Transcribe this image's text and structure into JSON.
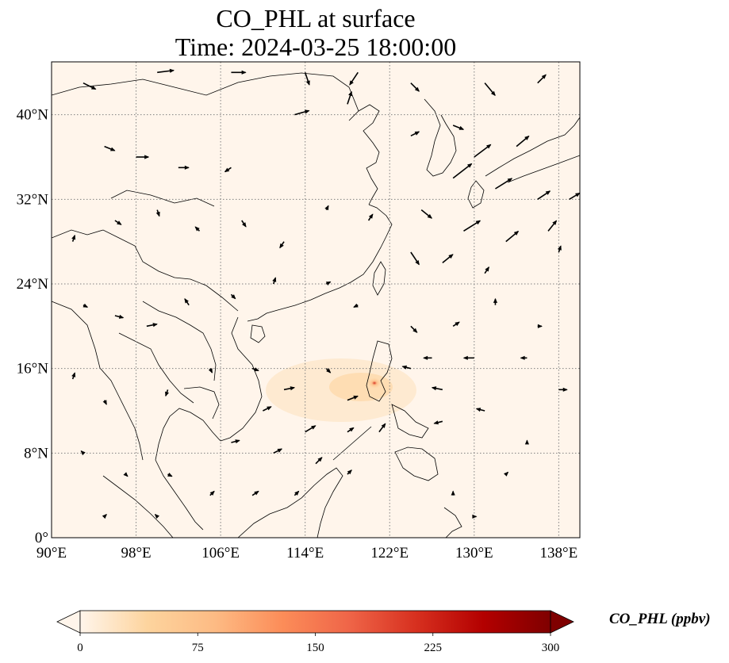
{
  "title": "CO_PHL at surface",
  "subtitle": "Time: 2024-03-25 18:00:00",
  "map": {
    "lon_range": [
      90,
      140
    ],
    "lat_range": [
      0,
      45
    ],
    "lon_ticks": [
      90,
      98,
      106,
      114,
      122,
      130,
      138
    ],
    "lon_tick_labels": [
      "90°E",
      "98°E",
      "106°E",
      "114°E",
      "122°E",
      "130°E",
      "138°E"
    ],
    "lat_ticks": [
      0,
      8,
      16,
      24,
      32,
      40
    ],
    "lat_tick_labels": [
      "0°",
      "8°N",
      "16°N",
      "24°N",
      "32°N",
      "40°N"
    ],
    "gridlines": true,
    "background_color": "#fff5eb",
    "plume_source": {
      "lon": 120.9,
      "lat": 14.6,
      "value_ppbv": 150
    }
  },
  "colorbar": {
    "label": "CO_PHL (ppbv)",
    "min": 0,
    "max": 300,
    "ticks": [
      0,
      75,
      150,
      225,
      300
    ],
    "tick_labels": [
      "0",
      "75",
      "150",
      "225",
      "300"
    ],
    "colormap": "OrRd",
    "colors": [
      "#fff5eb",
      "#fdd49e",
      "#fdbb84",
      "#fc8d59",
      "#ef6548",
      "#d7301f",
      "#b30000",
      "#7f0000"
    ],
    "extend": "both"
  },
  "wind_vectors": [
    {
      "lon": 93,
      "lat": 43,
      "u": 6,
      "v": -3
    },
    {
      "lon": 100,
      "lat": 44,
      "u": 8,
      "v": 1
    },
    {
      "lon": 107,
      "lat": 44,
      "u": 7,
      "v": 0
    },
    {
      "lon": 114,
      "lat": 44,
      "u": 2,
      "v": -6
    },
    {
      "lon": 119,
      "lat": 44,
      "u": -4,
      "v": -6
    },
    {
      "lon": 124,
      "lat": 43,
      "u": 4,
      "v": -4
    },
    {
      "lon": 131,
      "lat": 43,
      "u": 5,
      "v": -6
    },
    {
      "lon": 136,
      "lat": 43,
      "u": 4,
      "v": 4
    },
    {
      "lon": 95,
      "lat": 37,
      "u": 5,
      "v": -2
    },
    {
      "lon": 98,
      "lat": 36,
      "u": 6,
      "v": 0
    },
    {
      "lon": 102,
      "lat": 35,
      "u": 5,
      "v": 0
    },
    {
      "lon": 107,
      "lat": 35,
      "u": -3,
      "v": -2
    },
    {
      "lon": 113,
      "lat": 40,
      "u": 7,
      "v": 2
    },
    {
      "lon": 118,
      "lat": 41,
      "u": 2,
      "v": 6
    },
    {
      "lon": 124,
      "lat": 38,
      "u": 4,
      "v": 2
    },
    {
      "lon": 128,
      "lat": 39,
      "u": 5,
      "v": -2
    },
    {
      "lon": 130,
      "lat": 36,
      "u": 8,
      "v": 6
    },
    {
      "lon": 134,
      "lat": 37,
      "u": 6,
      "v": 5
    },
    {
      "lon": 128,
      "lat": 34,
      "u": 9,
      "v": 7
    },
    {
      "lon": 132,
      "lat": 33,
      "u": 8,
      "v": 5
    },
    {
      "lon": 136,
      "lat": 32,
      "u": 6,
      "v": 4
    },
    {
      "lon": 139,
      "lat": 32,
      "u": 5,
      "v": 3
    },
    {
      "lon": 125,
      "lat": 31,
      "u": 5,
      "v": -4
    },
    {
      "lon": 129,
      "lat": 29,
      "u": 8,
      "v": 5
    },
    {
      "lon": 133,
      "lat": 28,
      "u": 6,
      "v": 5
    },
    {
      "lon": 137,
      "lat": 29,
      "u": 4,
      "v": 5
    },
    {
      "lon": 124,
      "lat": 27,
      "u": 4,
      "v": -6
    },
    {
      "lon": 127,
      "lat": 26,
      "u": 5,
      "v": 4
    },
    {
      "lon": 131,
      "lat": 25,
      "u": 2,
      "v": 3
    },
    {
      "lon": 138,
      "lat": 27,
      "u": 1,
      "v": 3
    },
    {
      "lon": 92,
      "lat": 28,
      "u": 1,
      "v": 3
    },
    {
      "lon": 96,
      "lat": 30,
      "u": 3,
      "v": -2
    },
    {
      "lon": 100,
      "lat": 31,
      "u": 1,
      "v": -3
    },
    {
      "lon": 104,
      "lat": 29,
      "u": -2,
      "v": 2
    },
    {
      "lon": 108,
      "lat": 30,
      "u": 2,
      "v": -3
    },
    {
      "lon": 112,
      "lat": 28,
      "u": -2,
      "v": -3
    },
    {
      "lon": 116,
      "lat": 31,
      "u": 1,
      "v": 2
    },
    {
      "lon": 120,
      "lat": 30,
      "u": 2,
      "v": 3
    },
    {
      "lon": 93,
      "lat": 22,
      "u": 2,
      "v": -1
    },
    {
      "lon": 96,
      "lat": 21,
      "u": 4,
      "v": -1
    },
    {
      "lon": 99,
      "lat": 20,
      "u": 5,
      "v": 1
    },
    {
      "lon": 103,
      "lat": 22,
      "u": -2,
      "v": 3
    },
    {
      "lon": 107,
      "lat": 23,
      "u": 2,
      "v": -2
    },
    {
      "lon": 111,
      "lat": 24,
      "u": 1,
      "v": 3
    },
    {
      "lon": 116,
      "lat": 24,
      "u": 2,
      "v": 1
    },
    {
      "lon": 119,
      "lat": 22,
      "u": -2,
      "v": -1
    },
    {
      "lon": 124,
      "lat": 20,
      "u": 3,
      "v": -3
    },
    {
      "lon": 128,
      "lat": 20,
      "u": 3,
      "v": 2
    },
    {
      "lon": 132,
      "lat": 22,
      "u": 0,
      "v": 3
    },
    {
      "lon": 136,
      "lat": 20,
      "u": 2,
      "v": 0
    },
    {
      "lon": 126,
      "lat": 17,
      "u": -4,
      "v": 0
    },
    {
      "lon": 130,
      "lat": 17,
      "u": -5,
      "v": 0
    },
    {
      "lon": 135,
      "lat": 17,
      "u": -3,
      "v": 0
    },
    {
      "lon": 138,
      "lat": 14,
      "u": 4,
      "v": 0
    },
    {
      "lon": 124,
      "lat": 16,
      "u": -4,
      "v": 1
    },
    {
      "lon": 127,
      "lat": 14,
      "u": -5,
      "v": 1
    },
    {
      "lon": 131,
      "lat": 12,
      "u": -4,
      "v": 1
    },
    {
      "lon": 127,
      "lat": 11,
      "u": -4,
      "v": -1
    },
    {
      "lon": 92,
      "lat": 15,
      "u": 1,
      "v": 3
    },
    {
      "lon": 95,
      "lat": 13,
      "u": 1,
      "v": -2
    },
    {
      "lon": 101,
      "lat": 14,
      "u": -1,
      "v": -3
    },
    {
      "lon": 105,
      "lat": 16,
      "u": 1,
      "v": -2
    },
    {
      "lon": 109,
      "lat": 16,
      "u": 3,
      "v": -1
    },
    {
      "lon": 112,
      "lat": 14,
      "u": 5,
      "v": 1
    },
    {
      "lon": 116,
      "lat": 16,
      "u": 2,
      "v": -2
    },
    {
      "lon": 118,
      "lat": 13,
      "u": 5,
      "v": 2
    },
    {
      "lon": 110,
      "lat": 12,
      "u": 4,
      "v": 2
    },
    {
      "lon": 114,
      "lat": 10,
      "u": 5,
      "v": 3
    },
    {
      "lon": 118,
      "lat": 10,
      "u": 3,
      "v": 2
    },
    {
      "lon": 121,
      "lat": 10,
      "u": 3,
      "v": 4
    },
    {
      "lon": 107,
      "lat": 9,
      "u": 4,
      "v": 1
    },
    {
      "lon": 111,
      "lat": 8,
      "u": 4,
      "v": 2
    },
    {
      "lon": 115,
      "lat": 7,
      "u": 3,
      "v": 3
    },
    {
      "lon": 118,
      "lat": 6,
      "u": 2,
      "v": 2
    },
    {
      "lon": 101,
      "lat": 6,
      "u": 2,
      "v": -1
    },
    {
      "lon": 105,
      "lat": 4,
      "u": 2,
      "v": 2
    },
    {
      "lon": 109,
      "lat": 4,
      "u": 3,
      "v": 2
    },
    {
      "lon": 113,
      "lat": 4,
      "u": 2,
      "v": 2
    },
    {
      "lon": 93,
      "lat": 8,
      "u": -1,
      "v": 1
    },
    {
      "lon": 97,
      "lat": 6,
      "u": 1,
      "v": -1
    },
    {
      "lon": 95,
      "lat": 2,
      "u": 1,
      "v": 1
    },
    {
      "lon": 100,
      "lat": 2,
      "u": -1,
      "v": 1
    },
    {
      "lon": 128,
      "lat": 4,
      "u": 0,
      "v": 2
    },
    {
      "lon": 133,
      "lat": 6,
      "u": 1,
      "v": 1
    },
    {
      "lon": 130,
      "lat": 2,
      "u": 1,
      "v": 0
    },
    {
      "lon": 135,
      "lat": 9,
      "u": 0,
      "v": 1
    }
  ]
}
